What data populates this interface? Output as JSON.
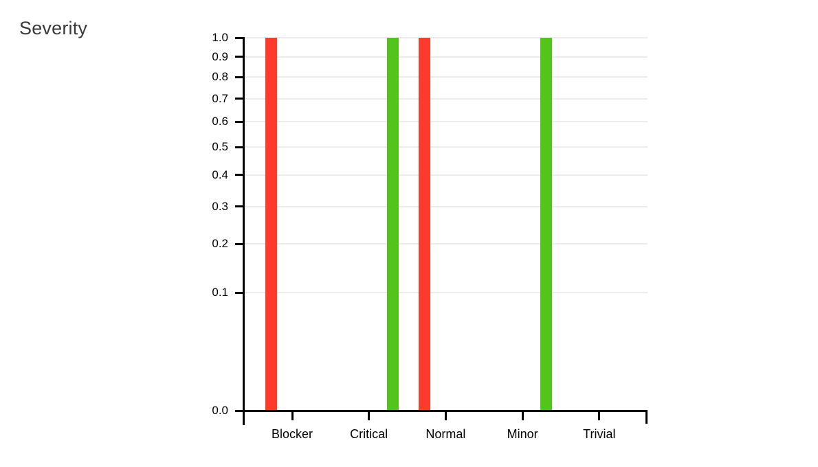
{
  "page": {
    "background_color": "#ffffff"
  },
  "chart_data": {
    "type": "bar",
    "title": "Severity",
    "categories": [
      "Blocker",
      "Critical",
      "Normal",
      "Minor",
      "Trivial"
    ],
    "series": [
      {
        "name": "red",
        "color": "#fc3b2d",
        "values": [
          1,
          0,
          1,
          0,
          0
        ]
      },
      {
        "name": "green",
        "color": "#53c41a",
        "values": [
          0,
          1,
          0,
          1,
          0
        ]
      }
    ],
    "y_ticks": [
      "1.0",
      "0.9",
      "0.8",
      "0.7",
      "0.6",
      "0.5",
      "0.4",
      "0.3",
      "0.2",
      "0.1",
      "0.0"
    ],
    "ylim": [
      0,
      1
    ],
    "xlabel": "",
    "ylabel": "",
    "y_scale": "sqrt",
    "grid": true,
    "legend": "none",
    "colors": {
      "axis": "#000000",
      "gridline": "#ececec",
      "tick_label": "#000000",
      "title": "#3a3a3a"
    }
  }
}
